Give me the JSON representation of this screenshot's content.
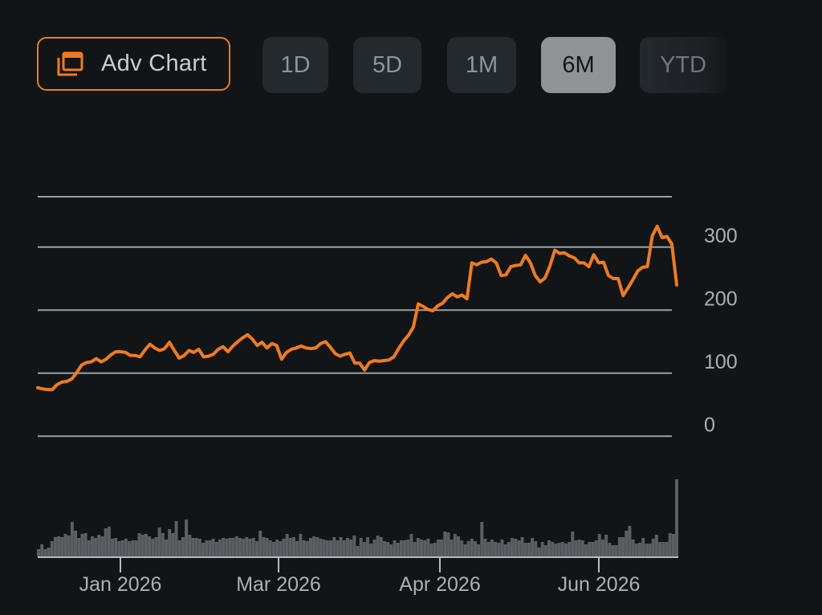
{
  "toolbar": {
    "adv_chart_label": "Adv Chart",
    "ranges": [
      {
        "label": "1D",
        "selected": false
      },
      {
        "label": "5D",
        "selected": false
      },
      {
        "label": "1M",
        "selected": false
      },
      {
        "label": "6M",
        "selected": true
      },
      {
        "label": "YTD",
        "selected": false
      }
    ]
  },
  "colors": {
    "background": "#121517",
    "accent": "#f07b20",
    "gridline": "#9aa0a6",
    "volume_bar": "#5b5f63",
    "button_bg": "#24292e",
    "button_active_bg": "#8f9396"
  },
  "chart_data": {
    "type": "line",
    "title": "",
    "xlabel": "",
    "ylabel": "",
    "ylim": [
      -20,
      380
    ],
    "yticks": [
      0,
      100,
      200,
      300
    ],
    "y_axis_side": "right",
    "grid": true,
    "x_ticks": [
      "Jan 2026",
      "Mar 2026",
      "Apr 2026",
      "Jun 2026"
    ],
    "series": [
      {
        "values": [
          77,
          75,
          74,
          74,
          82,
          86,
          87,
          91,
          101,
          113,
          117,
          118,
          123,
          118,
          122,
          129,
          134,
          134,
          133,
          128,
          128,
          126,
          137,
          146,
          140,
          136,
          139,
          149,
          136,
          124,
          128,
          136,
          133,
          138,
          126,
          127,
          130,
          138,
          142,
          134,
          143,
          150,
          156,
          161,
          154,
          144,
          149,
          140,
          147,
          144,
          122,
          133,
          138,
          140,
          143,
          140,
          139,
          140,
          147,
          150,
          141,
          131,
          127,
          130,
          132,
          116,
          116,
          105,
          117,
          120,
          119,
          120,
          121,
          126,
          139,
          151,
          160,
          173,
          210,
          206,
          201,
          199,
          207,
          211,
          220,
          226,
          221,
          224,
          218,
          275,
          272,
          276,
          277,
          281,
          275,
          255,
          256,
          269,
          271,
          272,
          287,
          275,
          255,
          245,
          251,
          270,
          295,
          290,
          291,
          286,
          283,
          275,
          275,
          269,
          288,
          275,
          276,
          255,
          250,
          250,
          223,
          235,
          248,
          262,
          268,
          269,
          318,
          333,
          315,
          317,
          305,
          240
        ]
      }
    ],
    "volume": [
      9,
      15,
      9,
      11,
      19,
      24,
      25,
      24,
      28,
      26,
      43,
      32,
      23,
      28,
      29,
      20,
      25,
      23,
      27,
      25,
      35,
      37,
      22,
      23,
      19,
      20,
      22,
      19,
      20,
      20,
      29,
      27,
      28,
      25,
      22,
      24,
      36,
      29,
      21,
      34,
      29,
      44,
      20,
      24,
      46,
      27,
      23,
      23,
      22,
      17,
      20,
      20,
      22,
      18,
      21,
      23,
      22,
      23,
      23,
      25,
      23,
      22,
      24,
      22,
      23,
      19,
      32,
      24,
      23,
      20,
      18,
      21,
      19,
      22,
      28,
      23,
      24,
      19,
      28,
      20,
      19,
      23,
      25,
      24,
      22,
      21,
      20,
      20,
      24,
      20,
      24,
      20,
      23,
      21,
      26,
      13,
      23,
      18,
      24,
      16,
      21,
      26,
      24,
      19,
      18,
      15,
      20,
      17,
      20,
      20,
      21,
      28,
      18,
      23,
      21,
      20,
      22,
      16,
      17,
      21,
      21,
      31,
      30,
      21,
      28,
      25,
      20,
      15,
      19,
      22,
      19,
      15,
      43,
      22,
      18,
      21,
      18,
      17,
      21,
      15,
      18,
      23,
      22,
      20,
      24,
      17,
      17,
      23,
      19,
      11,
      18,
      14,
      20,
      18,
      16,
      17,
      18,
      16,
      18,
      31,
      20,
      21,
      20,
      15,
      18,
      18,
      20,
      28,
      21,
      27,
      17,
      14,
      14,
      24,
      24,
      32,
      38,
      21,
      16,
      17,
      23,
      16,
      16,
      22,
      27,
      18,
      18,
      18,
      29,
      28,
      96
    ]
  }
}
